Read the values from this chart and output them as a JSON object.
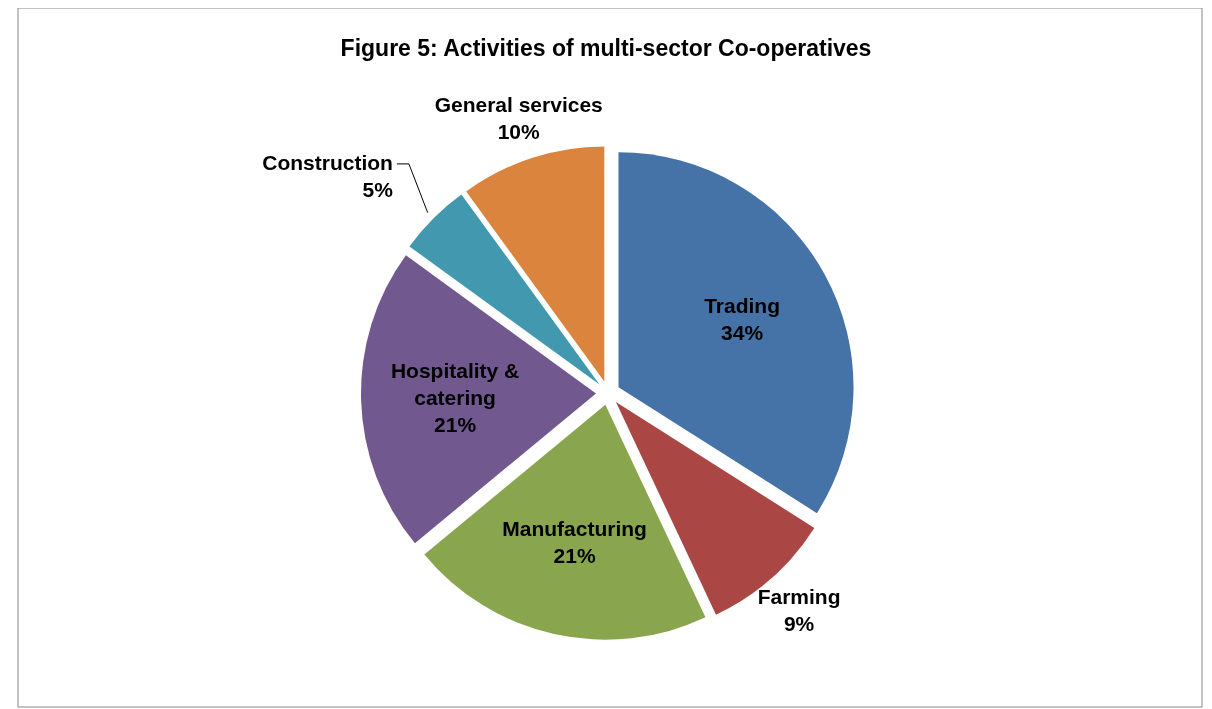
{
  "chart_data": {
    "type": "pie",
    "title": "Figure 5:  Activities of multi-sector Co-operatives",
    "categories": [
      "Trading",
      "Farming",
      "Manufacturing",
      "Hospitality & catering",
      "Construction",
      "General services"
    ],
    "values": [
      34,
      9,
      21,
      21,
      5,
      10
    ],
    "colors": [
      "#4572a7",
      "#aa4643",
      "#89a54e",
      "#71588f",
      "#4198af",
      "#db843d"
    ],
    "value_labels": [
      "34%",
      "9%",
      "21%",
      "21%",
      "5%",
      "10%"
    ]
  }
}
